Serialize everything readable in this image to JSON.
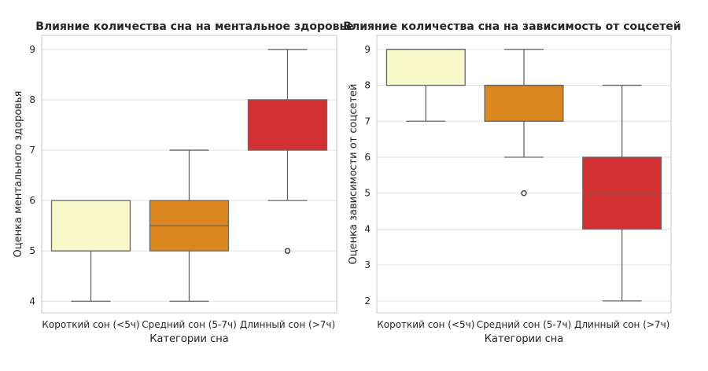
{
  "chart_data": [
    {
      "type": "box",
      "title": "Влияние количества сна на ментальное здоровье",
      "xlabel": "Категории сна",
      "ylabel": "Оценка ментального здоровья",
      "categories": [
        "Короткий сон (<5ч)",
        "Средний сон (5-7ч)",
        "Длинный сон (>7ч)"
      ],
      "yticks": [
        4,
        5,
        6,
        7,
        8,
        9
      ],
      "ylim": [
        3.77,
        9.28
      ],
      "grid": true,
      "colors": [
        "#f7f9cb",
        "#d9871e",
        "#d33131"
      ],
      "boxes": [
        {
          "whislo": 4,
          "q1": 5,
          "med": 5,
          "q3": 6,
          "whishi": 6,
          "fliers": []
        },
        {
          "whislo": 4,
          "q1": 5,
          "med": 5.5,
          "q3": 6,
          "whishi": 7,
          "fliers": []
        },
        {
          "whislo": 6,
          "q1": 7,
          "med": 8,
          "q3": 8,
          "whishi": 9,
          "fliers": [
            5
          ]
        }
      ]
    },
    {
      "type": "box",
      "title": "Влияние количества сна на зависимость от соцсетей",
      "xlabel": "Категории сна",
      "ylabel": "Оценка зависимости от соцсетей",
      "categories": [
        "Короткий сон (<5ч)",
        "Средний сон (5-7ч)",
        "Длинный сон (>7ч)"
      ],
      "yticks": [
        2,
        3,
        4,
        5,
        6,
        7,
        8,
        9
      ],
      "ylim": [
        1.67,
        9.39
      ],
      "grid": true,
      "colors": [
        "#f7f9cb",
        "#d9871e",
        "#d33131"
      ],
      "boxes": [
        {
          "whislo": 7,
          "q1": 8,
          "med": 9,
          "q3": 9,
          "whishi": 9,
          "fliers": []
        },
        {
          "whislo": 6,
          "q1": 7,
          "med": 8,
          "q3": 8,
          "whishi": 9,
          "fliers": [
            5
          ]
        },
        {
          "whislo": 2,
          "q1": 4,
          "med": 5,
          "q3": 6,
          "whishi": 8,
          "fliers": []
        }
      ]
    }
  ]
}
